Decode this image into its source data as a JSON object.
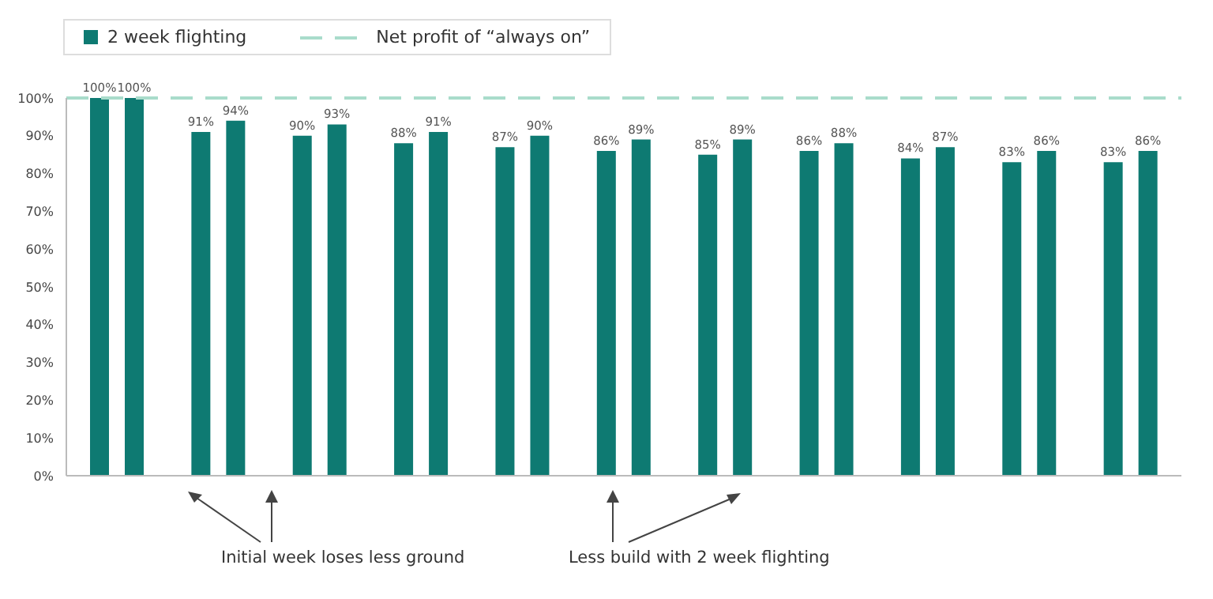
{
  "chart_data": {
    "type": "bar",
    "categories": [
      null,
      null,
      null,
      null,
      null,
      null,
      null,
      null,
      null,
      null,
      null
    ],
    "series": [
      {
        "name": "2 week flighting",
        "color": "#0e7a72",
        "values": [
          100,
          91,
          90,
          88,
          87,
          86,
          85,
          86,
          84,
          83,
          83
        ],
        "value_labels": [
          "100%",
          "91%",
          "90%",
          "88%",
          "87%",
          "86%",
          "85%",
          "86%",
          "84%",
          "83%",
          "83%"
        ]
      },
      {
        "color": "#0e7a72",
        "values": [
          100,
          94,
          93,
          91,
          90,
          89,
          89,
          88,
          87,
          86,
          86
        ],
        "value_labels": [
          "100%",
          "94%",
          "93%",
          "91%",
          "90%",
          "89%",
          "89%",
          "88%",
          "87%",
          "86%",
          "86%"
        ]
      }
    ],
    "ylim": [
      0,
      100
    ],
    "yticks": [
      {
        "value": 0,
        "label": "0%"
      },
      {
        "value": 10,
        "label": "10%"
      },
      {
        "value": 20,
        "label": "20%"
      },
      {
        "value": 30,
        "label": "30%"
      },
      {
        "value": 40,
        "label": "40%"
      },
      {
        "value": 50,
        "label": "50%"
      },
      {
        "value": 60,
        "label": "60%"
      },
      {
        "value": 70,
        "label": "70%"
      },
      {
        "value": 80,
        "label": "80%"
      },
      {
        "value": 90,
        "label": "90%"
      },
      {
        "value": 100,
        "label": "100%"
      }
    ],
    "ref_lines": [
      {
        "axis": "y",
        "value": 100,
        "label": "Net profit of “always on”",
        "color": "#a9dccb",
        "line_style": "dashed"
      }
    ],
    "legend": "top left",
    "grid": false,
    "annotations": [
      "Initial week loses less ground",
      "Less build with 2 week flighting"
    ]
  }
}
